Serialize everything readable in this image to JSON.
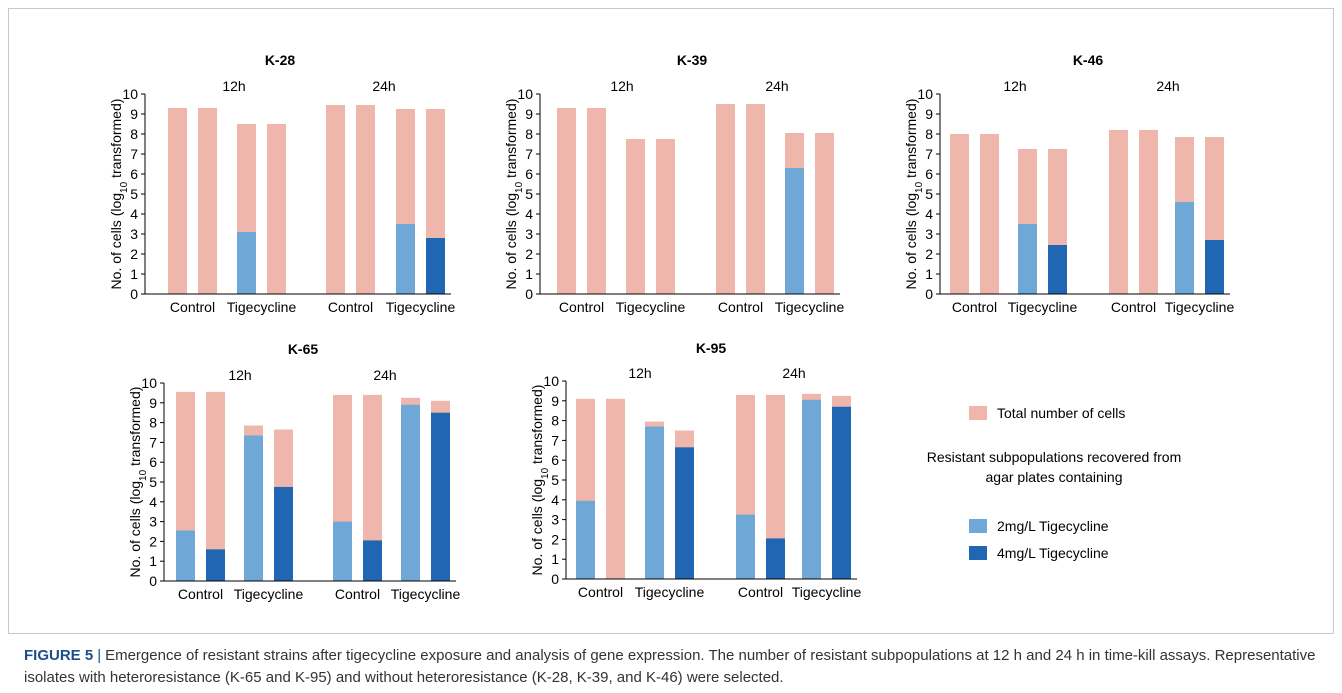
{
  "caption": {
    "label": "FIGURE 5",
    "separator": "|",
    "text": "Emergence of resistant strains after tigecycline exposure and analysis of gene expression. The number of resistant subpopulations at 12 h and 24 h in time-kill assays. Representative isolates with heteroresistance (K-65 and K-95) and without heteroresistance (K-28, K-39, and K-46) were selected."
  },
  "legend": {
    "total": "Total number of cells",
    "heading_line1": "Resistant subpopulations recovered from",
    "heading_line2": "agar plates containing",
    "s2": "2mg/L Tigecycline",
    "s4": "4mg/L Tigecycline"
  },
  "colors": {
    "total": "#efb7ab",
    "s2": "#6fa8d6",
    "s4": "#2166b3",
    "axis": "#000000"
  },
  "chart_data": [
    {
      "type": "bar",
      "title": "K-28",
      "ylabel": "No. of cells (log10 transformed)",
      "ylim": [
        0,
        10
      ],
      "yticks": [
        0,
        1,
        2,
        3,
        4,
        5,
        6,
        7,
        8,
        9,
        10
      ],
      "time_labels": [
        "12h",
        "24h"
      ],
      "categories": [
        "Control",
        "Tigecycline",
        "Control",
        "Tigecycline"
      ],
      "bars": [
        {
          "time": "12h",
          "group": "Control",
          "total": 9.3,
          "r2": null,
          "r4": null
        },
        {
          "time": "12h",
          "group": "Control",
          "total": 9.3,
          "r2": null,
          "r4": null
        },
        {
          "time": "12h",
          "group": "Tigecycline",
          "total": 8.5,
          "r2": 3.1,
          "r4": null
        },
        {
          "time": "12h",
          "group": "Tigecycline",
          "total": 8.5,
          "r2": null,
          "r4": null
        },
        {
          "time": "24h",
          "group": "Control",
          "total": 9.45,
          "r2": null,
          "r4": null
        },
        {
          "time": "24h",
          "group": "Control",
          "total": 9.45,
          "r2": null,
          "r4": null
        },
        {
          "time": "24h",
          "group": "Tigecycline",
          "total": 9.25,
          "r2": 3.5,
          "r4": null
        },
        {
          "time": "24h",
          "group": "Tigecycline",
          "total": 9.25,
          "r2": null,
          "r4": 2.8
        }
      ]
    },
    {
      "type": "bar",
      "title": "K-39",
      "ylabel": "No. of cells (log10 transformed)",
      "ylim": [
        0,
        10
      ],
      "yticks": [
        0,
        1,
        2,
        3,
        4,
        5,
        6,
        7,
        8,
        9,
        10
      ],
      "time_labels": [
        "12h",
        "24h"
      ],
      "categories": [
        "Control",
        "Tigecycline",
        "Control",
        "Tigecycline"
      ],
      "bars": [
        {
          "time": "12h",
          "group": "Control",
          "total": 9.3,
          "r2": null,
          "r4": null
        },
        {
          "time": "12h",
          "group": "Control",
          "total": 9.3,
          "r2": null,
          "r4": null
        },
        {
          "time": "12h",
          "group": "Tigecycline",
          "total": 7.75,
          "r2": null,
          "r4": null
        },
        {
          "time": "12h",
          "group": "Tigecycline",
          "total": 7.75,
          "r2": null,
          "r4": null
        },
        {
          "time": "24h",
          "group": "Control",
          "total": 9.5,
          "r2": null,
          "r4": null
        },
        {
          "time": "24h",
          "group": "Control",
          "total": 9.5,
          "r2": null,
          "r4": null
        },
        {
          "time": "24h",
          "group": "Tigecycline",
          "total": 8.05,
          "r2": 6.3,
          "r4": null
        },
        {
          "time": "24h",
          "group": "Tigecycline",
          "total": 8.05,
          "r2": null,
          "r4": null
        }
      ]
    },
    {
      "type": "bar",
      "title": "K-46",
      "ylabel": "No. of cells (log10 transformed)",
      "ylim": [
        0,
        10
      ],
      "yticks": [
        0,
        1,
        2,
        3,
        4,
        5,
        6,
        7,
        8,
        9,
        10
      ],
      "time_labels": [
        "12h",
        "24h"
      ],
      "categories": [
        "Control",
        "Tigecycline",
        "Control",
        "Tigecycline"
      ],
      "bars": [
        {
          "time": "12h",
          "group": "Control",
          "total": 8.0,
          "r2": null,
          "r4": null
        },
        {
          "time": "12h",
          "group": "Control",
          "total": 8.0,
          "r2": null,
          "r4": null
        },
        {
          "time": "12h",
          "group": "Tigecycline",
          "total": 7.25,
          "r2": 3.5,
          "r4": null
        },
        {
          "time": "12h",
          "group": "Tigecycline",
          "total": 7.25,
          "r2": null,
          "r4": 2.45
        },
        {
          "time": "24h",
          "group": "Control",
          "total": 8.2,
          "r2": null,
          "r4": null
        },
        {
          "time": "24h",
          "group": "Control",
          "total": 8.2,
          "r2": null,
          "r4": null
        },
        {
          "time": "24h",
          "group": "Tigecycline",
          "total": 7.85,
          "r2": 4.6,
          "r4": null
        },
        {
          "time": "24h",
          "group": "Tigecycline",
          "total": 7.85,
          "r2": null,
          "r4": 2.7
        }
      ]
    },
    {
      "type": "bar",
      "title": "K-65",
      "ylabel": "No. of cells (log10 transformed)",
      "ylim": [
        0,
        10
      ],
      "yticks": [
        0,
        1,
        2,
        3,
        4,
        5,
        6,
        7,
        8,
        9,
        10
      ],
      "time_labels": [
        "12h",
        "24h"
      ],
      "categories": [
        "Control",
        "Tigecycline",
        "Control",
        "Tigecycline"
      ],
      "bars": [
        {
          "time": "12h",
          "group": "Control",
          "total": 9.55,
          "r2": 2.55,
          "r4": null
        },
        {
          "time": "12h",
          "group": "Control",
          "total": 9.55,
          "r2": null,
          "r4": 1.6
        },
        {
          "time": "12h",
          "group": "Tigecycline",
          "total": 7.85,
          "r2": 7.35,
          "r4": null
        },
        {
          "time": "12h",
          "group": "Tigecycline",
          "total": 7.65,
          "r2": null,
          "r4": 4.75
        },
        {
          "time": "24h",
          "group": "Control",
          "total": 9.4,
          "r2": 3.0,
          "r4": null
        },
        {
          "time": "24h",
          "group": "Control",
          "total": 9.4,
          "r2": null,
          "r4": 2.05
        },
        {
          "time": "24h",
          "group": "Tigecycline",
          "total": 9.25,
          "r2": 8.9,
          "r4": null
        },
        {
          "time": "24h",
          "group": "Tigecycline",
          "total": 9.1,
          "r2": null,
          "r4": 8.5
        }
      ]
    },
    {
      "type": "bar",
      "title": "K-95",
      "ylabel": "No. of cells (log10 transformed)",
      "ylim": [
        0,
        10
      ],
      "yticks": [
        0,
        1,
        2,
        3,
        4,
        5,
        6,
        7,
        8,
        9,
        10
      ],
      "time_labels": [
        "12h",
        "24h"
      ],
      "categories": [
        "Control",
        "Tigecycline",
        "Control",
        "Tigecycline"
      ],
      "bars": [
        {
          "time": "12h",
          "group": "Control",
          "total": 9.1,
          "r2": 3.95,
          "r4": null
        },
        {
          "time": "12h",
          "group": "Control",
          "total": 9.1,
          "r2": null,
          "r4": null
        },
        {
          "time": "12h",
          "group": "Tigecycline",
          "total": 7.95,
          "r2": 7.7,
          "r4": null
        },
        {
          "time": "12h",
          "group": "Tigecycline",
          "total": 7.5,
          "r2": null,
          "r4": 6.65
        },
        {
          "time": "24h",
          "group": "Control",
          "total": 9.3,
          "r2": 3.25,
          "r4": null
        },
        {
          "time": "24h",
          "group": "Control",
          "total": 9.3,
          "r2": null,
          "r4": 2.05
        },
        {
          "time": "24h",
          "group": "Tigecycline",
          "total": 9.35,
          "r2": 9.05,
          "r4": null
        },
        {
          "time": "24h",
          "group": "Tigecycline",
          "total": 9.25,
          "r2": null,
          "r4": 8.7
        }
      ]
    }
  ]
}
